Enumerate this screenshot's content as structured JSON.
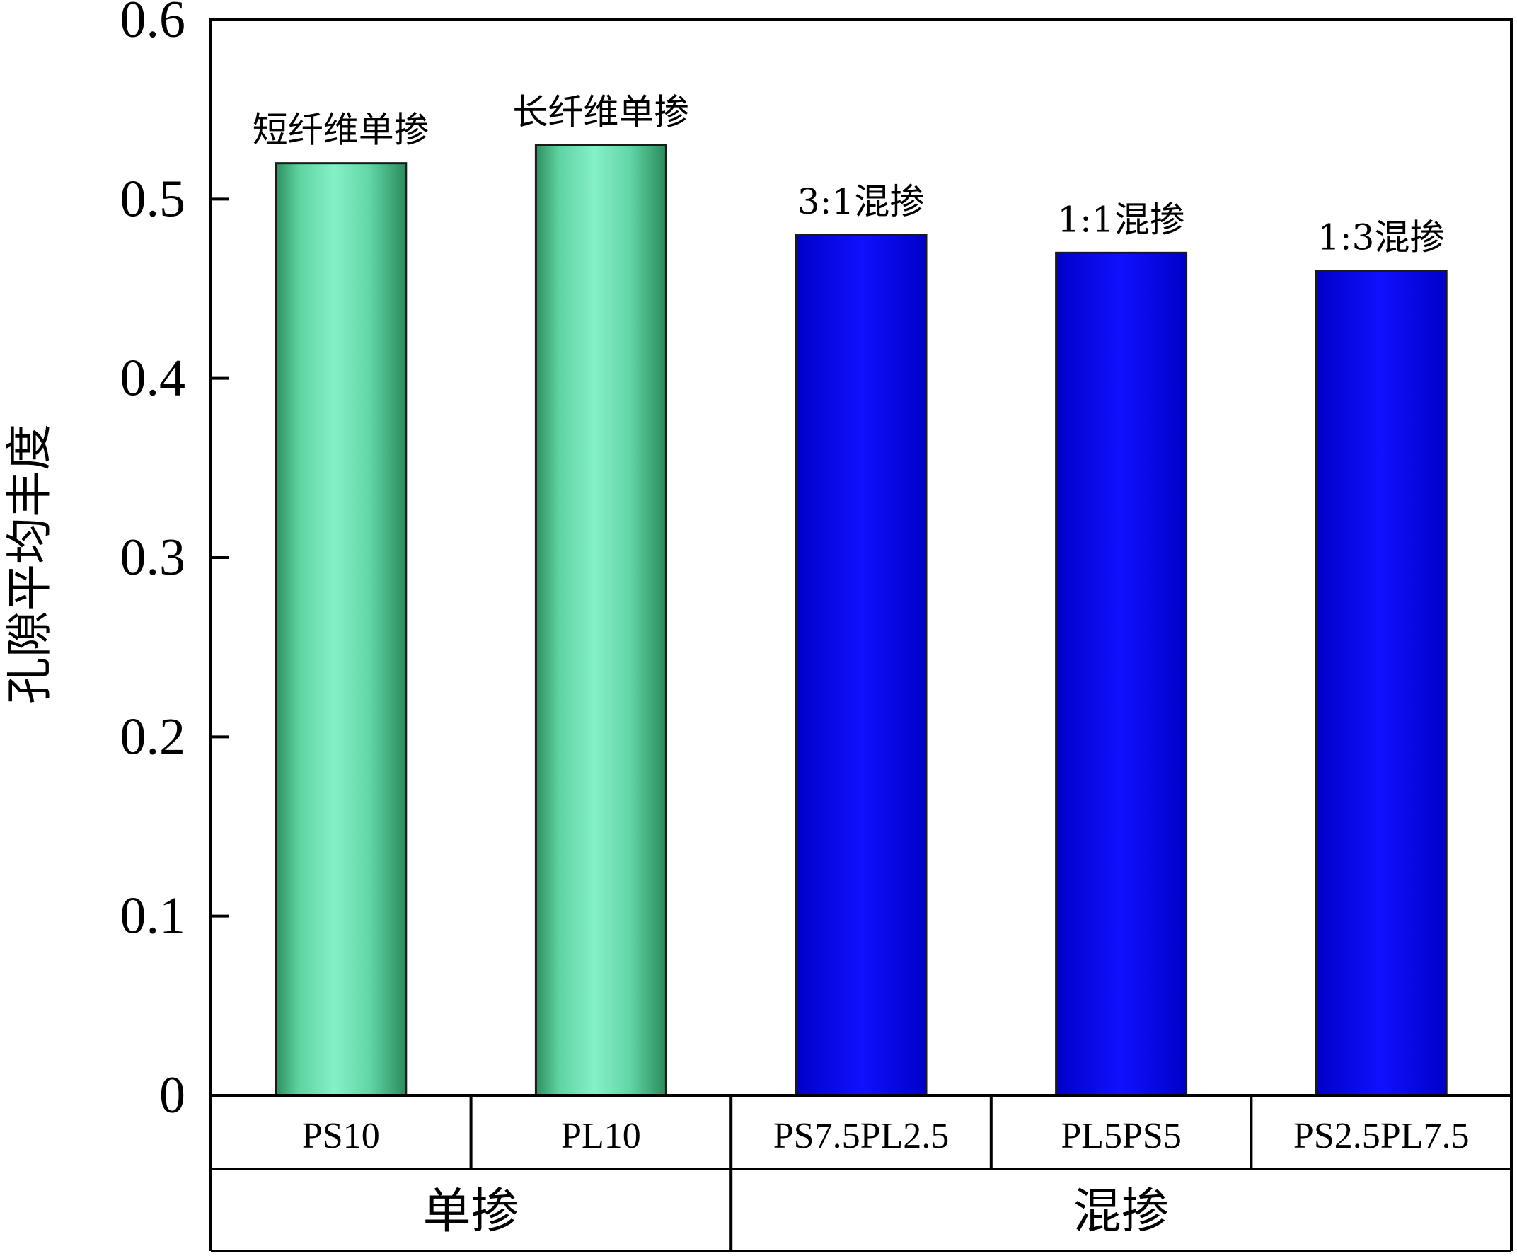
{
  "chart_data": {
    "type": "bar",
    "title": "",
    "xlabel": "",
    "ylabel": "孔隙平均丰度",
    "ylim": [
      0,
      0.6
    ],
    "yticks": [
      "0",
      "0.1",
      "0.2",
      "0.3",
      "0.4",
      "0.5",
      "0.6"
    ],
    "categories": [
      "PS10",
      "PL10",
      "PS7.5PL2.5",
      "PL5PS5",
      "PS2.5PL7.5"
    ],
    "values": [
      0.52,
      0.53,
      0.48,
      0.47,
      0.46
    ],
    "bar_labels": [
      "短纤维单掺",
      "长纤维单掺",
      "3:1混掺",
      "1:1混掺",
      "1:3混掺"
    ],
    "bar_colors": [
      "#3fb98a",
      "#3fb98a",
      "#0a0ae0",
      "#0a0ae0",
      "#0a0ae0"
    ],
    "groups": [
      {
        "label": "单掺",
        "categories": [
          "PS10",
          "PL10"
        ]
      },
      {
        "label": "混掺",
        "categories": [
          "PS7.5PL2.5",
          "PL5PS5",
          "PS2.5PL7.5"
        ]
      }
    ],
    "grid": false,
    "legend": "none"
  }
}
